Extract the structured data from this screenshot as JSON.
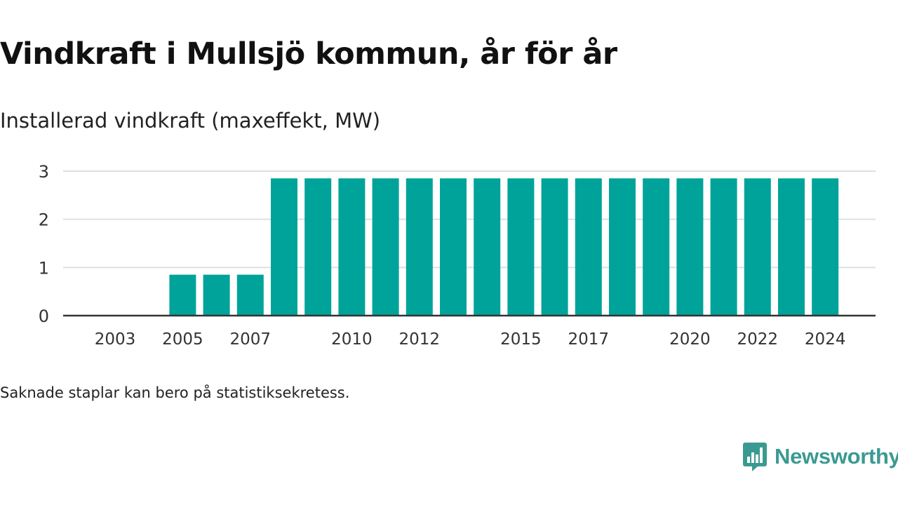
{
  "title": "Vindkraft i Mullsjö kommun, år för år",
  "subtitle": "Installerad vindkraft (maxeffekt, MW)",
  "footnote": "Saknade staplar kan bero på statistiksekretess.",
  "logo": {
    "text": "Newsworthy",
    "icon": "chart-bubble-icon"
  },
  "colors": {
    "bar": "#00a39a",
    "grid": "#dcdfe6",
    "axis": "#333333",
    "text": "#333333",
    "logo": "#3a9a92"
  },
  "chart_data": {
    "type": "bar",
    "categories": [
      "2003",
      "2004",
      "2005",
      "2006",
      "2007",
      "2008",
      "2009",
      "2010",
      "2011",
      "2012",
      "2013",
      "2014",
      "2015",
      "2016",
      "2017",
      "2018",
      "2019",
      "2020",
      "2021",
      "2022",
      "2023",
      "2024"
    ],
    "values": [
      0,
      0,
      0.85,
      0.85,
      0.85,
      2.85,
      2.85,
      2.85,
      2.85,
      2.85,
      2.85,
      2.85,
      2.85,
      2.85,
      2.85,
      2.85,
      2.85,
      2.85,
      2.85,
      2.85,
      2.85,
      2.85
    ],
    "x_tick_labels": [
      "2003",
      "2005",
      "2007",
      "2010",
      "2012",
      "2015",
      "2017",
      "2020",
      "2022",
      "2024"
    ],
    "y_ticks": [
      0,
      1,
      2,
      3
    ],
    "ylim": [
      0,
      3
    ],
    "grid": true,
    "legend": "none"
  }
}
